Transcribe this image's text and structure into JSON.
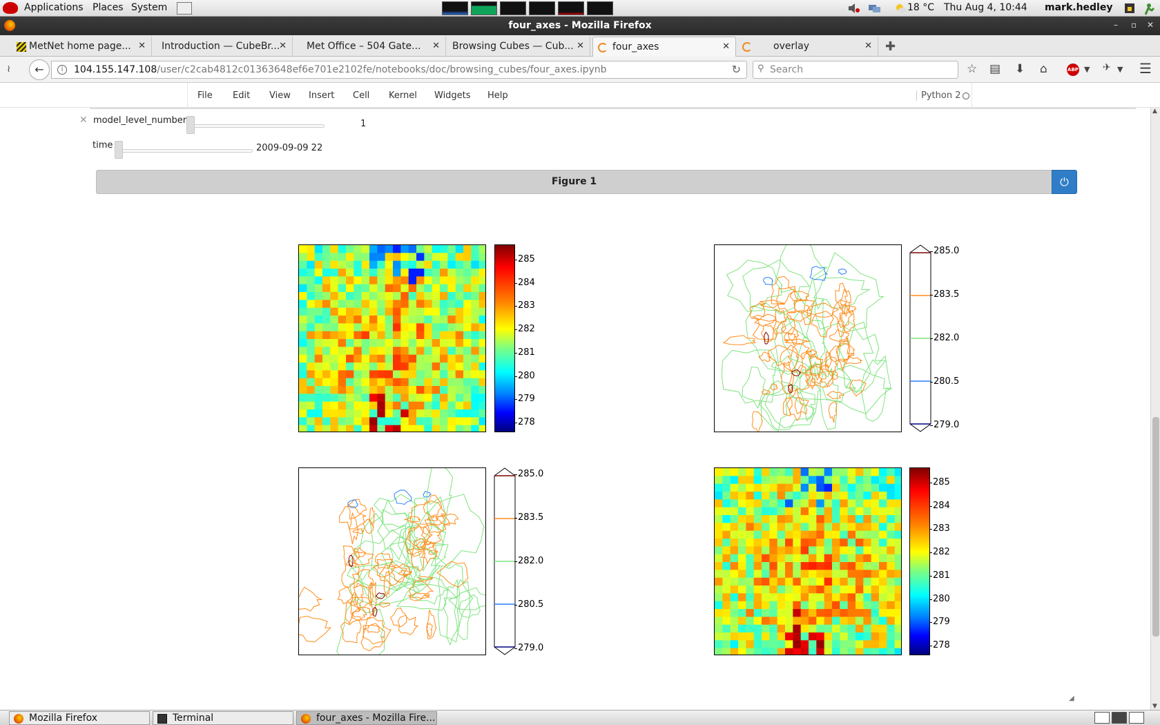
{
  "panel": {
    "menus": [
      "Applications",
      "Places",
      "System"
    ],
    "weather": "18 °C",
    "clock": "Thu Aug  4, 10:44",
    "user": "mark.hedley"
  },
  "window": {
    "title": "four_axes - Mozilla Firefox"
  },
  "tabs": [
    {
      "label": "MetNet home page...",
      "active": false
    },
    {
      "label": "Introduction — CubeBr...",
      "active": false
    },
    {
      "label": "Met Office – 504 Gate...",
      "active": false
    },
    {
      "label": "Browsing Cubes — Cub...",
      "active": false
    },
    {
      "label": "four_axes",
      "active": true
    },
    {
      "label": "overlay",
      "active": false
    }
  ],
  "navbar": {
    "url_host": "104.155.147.108",
    "url_path": "/user/c2cab4812c01363648ef6e701e2102fe/notebooks/doc/browsing_cubes/four_axes.ipynb",
    "search_placeholder": "Search"
  },
  "jupyter": {
    "menu": [
      "File",
      "Edit",
      "View",
      "Insert",
      "Cell",
      "Kernel",
      "Widgets",
      "Help"
    ],
    "kernel": "Python 2"
  },
  "widgets": {
    "model_level": {
      "label": "model_level_number",
      "value": "1",
      "fraction": 0.0
    },
    "time": {
      "label": "time",
      "value": "2009-09-09 22",
      "fraction": 0.0
    }
  },
  "figure": {
    "title": "Figure 1",
    "pcolor_ticks": [
      "285",
      "284",
      "283",
      "282",
      "281",
      "280",
      "279",
      "278"
    ],
    "contour_ticks": [
      "285.0",
      "283.5",
      "282.0",
      "280.5",
      "279.0"
    ],
    "contour_colors": [
      "#7f0000",
      "#ff8c1a",
      "#7fe37f",
      "#2a7fff",
      "#00007f"
    ]
  },
  "taskbar": [
    {
      "label": "Mozilla Firefox",
      "active": false
    },
    {
      "label": "Terminal",
      "active": false
    },
    {
      "label": "four_axes - Mozilla Fire...",
      "active": true
    }
  ]
}
